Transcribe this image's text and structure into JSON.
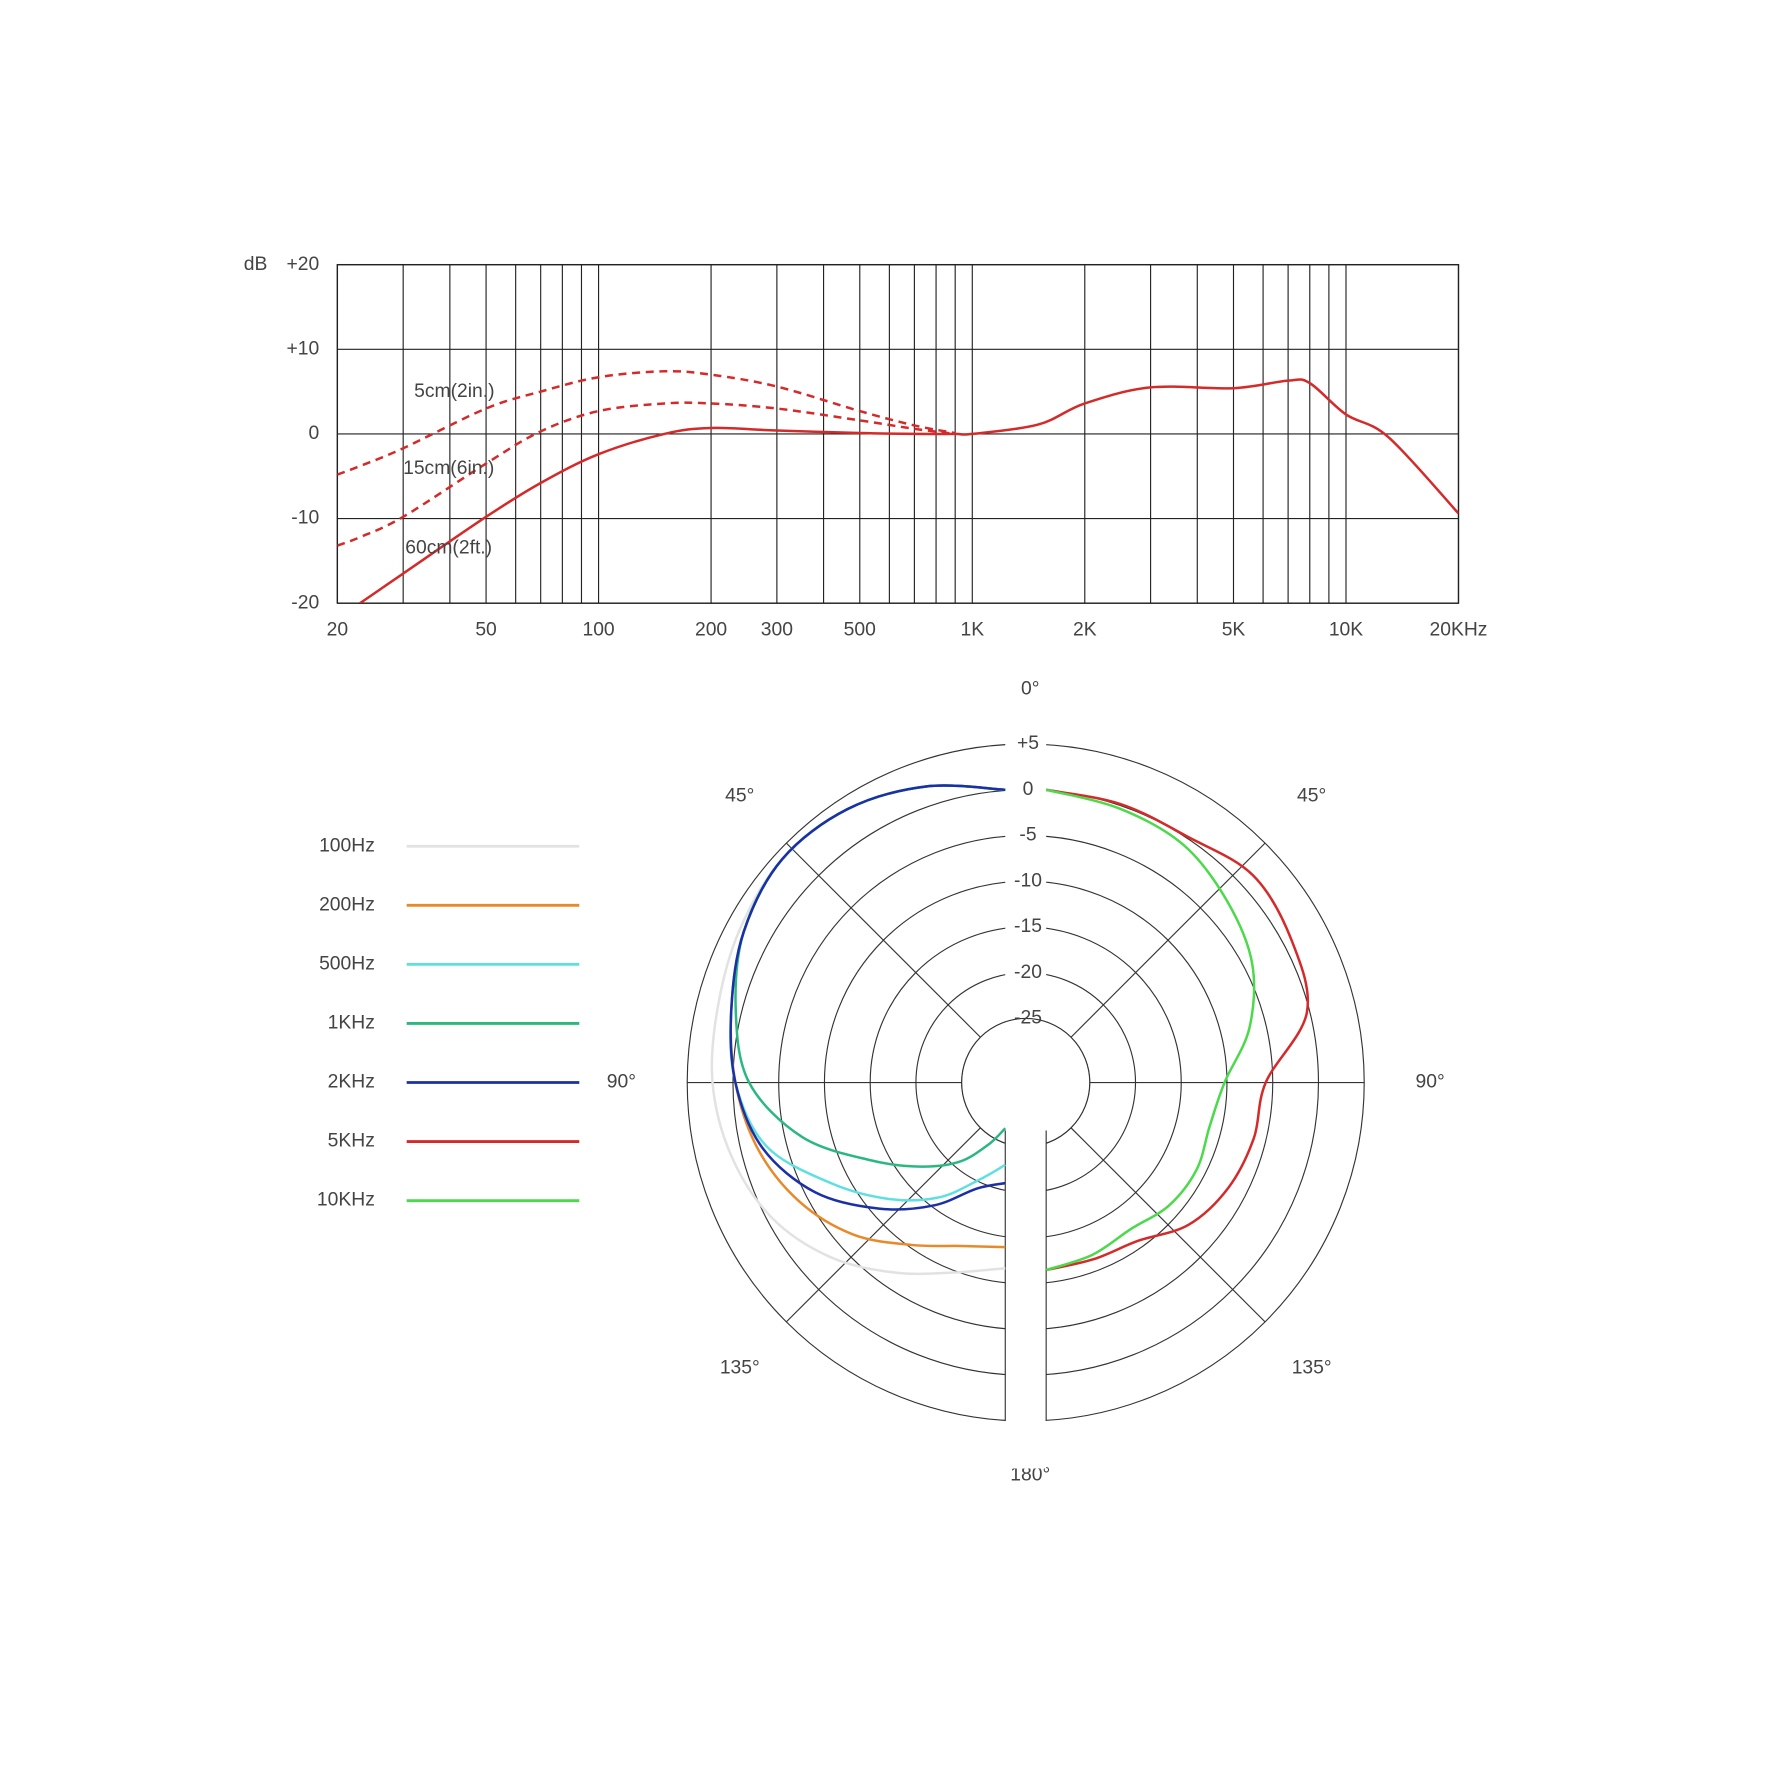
{
  "chart_data": [
    {
      "type": "line",
      "x_scale": "log",
      "y_label": "dB",
      "grid": true,
      "x": [
        20,
        23,
        30,
        50,
        70,
        100,
        150,
        200,
        300,
        500,
        700,
        900,
        1000,
        1500,
        2000,
        3000,
        5000,
        7000,
        8000,
        10000,
        13000,
        20000
      ],
      "xlim": [
        20,
        20000
      ],
      "ylim": [
        -20,
        20
      ],
      "xticks": [
        20,
        50,
        100,
        200,
        300,
        500,
        {
          "value": 1000,
          "label": "1K"
        },
        {
          "value": 2000,
          "label": "2K"
        },
        {
          "value": 5000,
          "label": "5K"
        },
        {
          "value": 10000,
          "label": "10K"
        },
        {
          "value": 20000,
          "label": "20KHz"
        }
      ],
      "xgrid": [
        30,
        40,
        60,
        70,
        80,
        90,
        400,
        600,
        700,
        800,
        900,
        3000,
        4000,
        6000,
        7000,
        8000,
        9000
      ],
      "yticks": [
        -20,
        -10,
        0,
        {
          "value": 10,
          "label": "+10"
        },
        {
          "value": 20,
          "label": "+20"
        }
      ],
      "series": [
        {
          "name": "5cm(2in.)",
          "color": "#d42a2a",
          "line_style": "dashed",
          "values": [
            -4.8,
            -3.8,
            -1.7,
            3,
            5,
            6.7,
            7.4,
            7,
            5.6,
            2.7,
            1,
            0.1,
            null,
            null,
            null,
            null,
            null,
            null,
            null,
            null,
            null,
            null
          ]
        },
        {
          "name": "15cm(6in.)",
          "color": "#d42a2a",
          "line_style": "dashed",
          "values": [
            -13.2,
            -12.2,
            -9.8,
            -3.5,
            0.3,
            2.7,
            3.6,
            3.6,
            3,
            1.6,
            0.6,
            0,
            null,
            null,
            null,
            null,
            null,
            null,
            null,
            null,
            null,
            null
          ]
        },
        {
          "name": "60cm(2ft.)",
          "color": "#d42a2a",
          "line_style": "solid",
          "values": [
            null,
            -20,
            -16.5,
            -9.8,
            -5.8,
            -2.4,
            0,
            0.7,
            0.4,
            0.1,
            0,
            0,
            0,
            1.1,
            3.6,
            5.5,
            5.4,
            6.3,
            6,
            2.3,
            -0.4,
            -9.4
          ]
        }
      ]
    },
    {
      "type": "polar",
      "legend": "left",
      "angles": [
        0,
        15,
        30,
        45,
        60,
        75,
        90,
        105,
        120,
        135,
        150,
        165,
        180
      ],
      "rlim": [
        -32,
        5
      ],
      "rticks": [
        -25,
        -20,
        -15,
        -10,
        -5,
        0,
        {
          "value": 5,
          "label": "+5"
        }
      ],
      "angle_ticks": [
        {
          "value": 0,
          "label": "0°"
        },
        {
          "value": 45,
          "label": "45°"
        },
        {
          "value": 90,
          "label": "90°"
        },
        {
          "value": 135,
          "label": "135°"
        },
        {
          "value": 180,
          "label": "180°"
        }
      ],
      "series": [
        {
          "name": "100Hz",
          "color": "#e2e2e2",
          "side": "left",
          "values": [
            0,
            1.5,
            2.5,
            2.5,
            1.5,
            0.5,
            0,
            -1,
            -2.5,
            -5,
            -8,
            -10.5,
            -11.7
          ]
        },
        {
          "name": "200Hz",
          "color": "#e8892b",
          "side": "left",
          "values": [
            0,
            1.5,
            2.5,
            2.5,
            1,
            -1,
            -2.5,
            -4,
            -6,
            -8.5,
            -11.5,
            -13.5,
            -14
          ]
        },
        {
          "name": "500Hz",
          "color": "#5fe0e0",
          "side": "left",
          "values": [
            0,
            1.5,
            2.5,
            2.5,
            1,
            -1,
            -2.5,
            -5,
            -10,
            -14,
            -17.5,
            -21,
            -23
          ]
        },
        {
          "name": "1KHz",
          "color": "#2bb880",
          "side": "left",
          "values": [
            0,
            1.5,
            2.5,
            2.5,
            1,
            -1.5,
            -4,
            -9,
            -15,
            -19,
            -22,
            -25,
            -27
          ]
        },
        {
          "name": "2KHz",
          "color": "#1a2fa8",
          "side": "left",
          "values": [
            0,
            1.5,
            2.5,
            2.5,
            1,
            -1,
            -2.5,
            -4.5,
            -8,
            -12.5,
            -16.5,
            -20,
            -21
          ]
        },
        {
          "name": "5KHz",
          "color": "#d42a2a",
          "side": "right",
          "values": [
            0,
            -0.5,
            -1,
            0,
            -1,
            -2.5,
            -8,
            -8.5,
            -9,
            -10,
            -12,
            -12,
            -11.5
          ]
        },
        {
          "name": "10KHz",
          "color": "#4cd94c",
          "side": "right",
          "values": [
            0,
            -1,
            -2,
            -4,
            -6,
            -9,
            -12.5,
            -13.5,
            -13,
            -13,
            -13.5,
            -12.5,
            -11.5
          ]
        }
      ]
    }
  ]
}
